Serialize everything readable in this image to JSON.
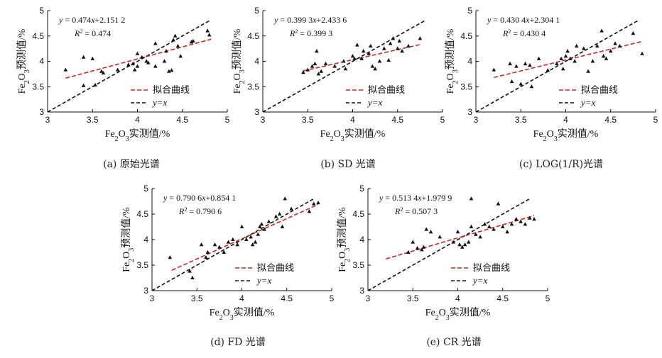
{
  "chart_data": [
    {
      "type": "scatter",
      "panel_label": "(a) 原始光谱",
      "xlabel": "Fe2O3实测值/%",
      "ylabel": "Fe2O3预测值/%",
      "xlim": [
        3,
        5
      ],
      "ylim": [
        3,
        5
      ],
      "xticks": [
        "3",
        "3.5",
        "4",
        "4.5",
        "5"
      ],
      "yticks": [
        "3",
        "3.5",
        "4",
        "4.5",
        "5"
      ],
      "equation": "y = 0.474x+2.151 2",
      "r2": "R² = 0.474",
      "fit": {
        "slope": 0.474,
        "intercept": 2.1512,
        "x_range": [
          3.2,
          4.82
        ]
      },
      "legend": {
        "fit_label": "拟合曲线",
        "identity_label": "y=x"
      },
      "points": [
        [
          3.2,
          3.83
        ],
        [
          3.4,
          3.52
        ],
        [
          3.4,
          4.08
        ],
        [
          3.5,
          4.05
        ],
        [
          3.53,
          3.53
        ],
        [
          3.6,
          3.8
        ],
        [
          3.62,
          3.77
        ],
        [
          3.78,
          3.83
        ],
        [
          3.9,
          3.93
        ],
        [
          3.95,
          3.95
        ],
        [
          3.97,
          3.83
        ],
        [
          4.0,
          3.9
        ],
        [
          4.0,
          4.15
        ],
        [
          4.05,
          4.08
        ],
        [
          4.1,
          4.0
        ],
        [
          4.12,
          3.97
        ],
        [
          4.2,
          3.9
        ],
        [
          4.2,
          4.35
        ],
        [
          4.3,
          4.0
        ],
        [
          4.32,
          4.2
        ],
        [
          4.35,
          3.8
        ],
        [
          4.38,
          3.82
        ],
        [
          4.4,
          4.42
        ],
        [
          4.42,
          4.5
        ],
        [
          4.45,
          4.3
        ],
        [
          4.48,
          4.1
        ],
        [
          4.6,
          4.38
        ],
        [
          4.62,
          4.4
        ],
        [
          4.78,
          4.6
        ],
        [
          4.8,
          4.52
        ]
      ]
    },
    {
      "type": "scatter",
      "panel_label": "(b) SD 光谱",
      "xlabel": "Fe2O3实测值/%",
      "ylabel": "Fe2O3预测值/%",
      "xlim": [
        3,
        5
      ],
      "ylim": [
        3,
        5
      ],
      "xticks": [
        "3",
        "3.5",
        "4",
        "4.5",
        "5"
      ],
      "yticks": [
        "3",
        "3.5",
        "4",
        "4.5",
        "5"
      ],
      "equation": "y = 0.399 3x+2.433 6",
      "r2": "R² = 0.399 3",
      "fit": {
        "slope": 0.3993,
        "intercept": 2.4336,
        "x_range": [
          3.45,
          4.75
        ]
      },
      "legend": {
        "fit_label": "拟合曲线",
        "identity_label": "y=x"
      },
      "points": [
        [
          3.45,
          3.78
        ],
        [
          3.5,
          3.83
        ],
        [
          3.55,
          3.9
        ],
        [
          3.58,
          3.95
        ],
        [
          3.6,
          4.2
        ],
        [
          3.62,
          3.75
        ],
        [
          3.65,
          3.8
        ],
        [
          3.7,
          3.95
        ],
        [
          3.8,
          3.9
        ],
        [
          3.9,
          4.0
        ],
        [
          3.92,
          3.85
        ],
        [
          4.0,
          4.1
        ],
        [
          4.02,
          4.05
        ],
        [
          4.05,
          4.32
        ],
        [
          4.1,
          4.05
        ],
        [
          4.12,
          4.2
        ],
        [
          4.18,
          4.15
        ],
        [
          4.2,
          4.3
        ],
        [
          4.22,
          3.9
        ],
        [
          4.25,
          3.85
        ],
        [
          4.3,
          4.0
        ],
        [
          4.35,
          4.25
        ],
        [
          4.4,
          4.02
        ],
        [
          4.42,
          4.35
        ],
        [
          4.45,
          4.45
        ],
        [
          4.5,
          4.25
        ],
        [
          4.52,
          4.4
        ],
        [
          4.55,
          4.2
        ],
        [
          4.62,
          4.3
        ],
        [
          4.75,
          4.45
        ]
      ]
    },
    {
      "type": "scatter",
      "panel_label": "(c) LOG(1/R)光谱",
      "xlabel": "Fe2O3实测值/%",
      "ylabel": "Fe2O3预测值/%",
      "xlim": [
        3,
        5
      ],
      "ylim": [
        3,
        5
      ],
      "xticks": [
        "3",
        "3.5",
        "4",
        "4.5",
        "5"
      ],
      "yticks": [
        "3",
        "3.5",
        "4",
        "4.5",
        "5"
      ],
      "equation": "y = 0.430 4x+2.304 1",
      "r2": "R² = 0.430 4",
      "fit": {
        "slope": 0.4304,
        "intercept": 2.3041,
        "x_range": [
          3.2,
          4.85
        ]
      },
      "legend": {
        "fit_label": "拟合曲线",
        "identity_label": "y=x"
      },
      "points": [
        [
          3.2,
          3.83
        ],
        [
          3.38,
          3.95
        ],
        [
          3.4,
          3.6
        ],
        [
          3.45,
          3.9
        ],
        [
          3.5,
          3.55
        ],
        [
          3.55,
          3.95
        ],
        [
          3.6,
          3.92
        ],
        [
          3.62,
          3.5
        ],
        [
          3.7,
          4.05
        ],
        [
          3.8,
          3.82
        ],
        [
          3.9,
          3.95
        ],
        [
          3.95,
          4.05
        ],
        [
          3.97,
          3.85
        ],
        [
          4.0,
          4.1
        ],
        [
          4.02,
          4.2
        ],
        [
          4.05,
          4.05
        ],
        [
          4.1,
          4.0
        ],
        [
          4.12,
          4.3
        ],
        [
          4.2,
          4.25
        ],
        [
          4.25,
          3.8
        ],
        [
          4.3,
          4.0
        ],
        [
          4.35,
          4.3
        ],
        [
          4.4,
          4.6
        ],
        [
          4.42,
          4.1
        ],
        [
          4.45,
          4.05
        ],
        [
          4.5,
          4.2
        ],
        [
          4.55,
          4.35
        ],
        [
          4.6,
          4.3
        ],
        [
          4.75,
          4.55
        ],
        [
          4.85,
          4.15
        ]
      ]
    },
    {
      "type": "scatter",
      "panel_label": "(d) FD 光谱",
      "xlabel": "Fe2O3实测值/%",
      "ylabel": "Fe2O3预测值/%",
      "xlim": [
        3,
        5
      ],
      "ylim": [
        3,
        5
      ],
      "xticks": [
        "3",
        "3.5",
        "4",
        "4.5",
        "5"
      ],
      "yticks": [
        "3",
        "3.5",
        "4",
        "4.5",
        "5"
      ],
      "equation": "y = 0.790 6x+0.854 1",
      "r2": "R² = 0.790 6",
      "fit": {
        "slope": 0.7906,
        "intercept": 0.8541,
        "x_range": [
          3.22,
          4.85
        ]
      },
      "legend": {
        "fit_label": "拟合曲线",
        "identity_label": "y=x"
      },
      "points": [
        [
          3.2,
          3.65
        ],
        [
          3.42,
          3.38
        ],
        [
          3.45,
          3.25
        ],
        [
          3.55,
          3.9
        ],
        [
          3.6,
          3.65
        ],
        [
          3.62,
          3.75
        ],
        [
          3.7,
          3.9
        ],
        [
          3.75,
          3.85
        ],
        [
          3.8,
          3.75
        ],
        [
          3.85,
          3.95
        ],
        [
          3.9,
          4.0
        ],
        [
          3.95,
          3.9
        ],
        [
          4.0,
          4.25
        ],
        [
          4.05,
          4.0
        ],
        [
          4.1,
          4.05
        ],
        [
          4.12,
          3.9
        ],
        [
          4.15,
          3.95
        ],
        [
          4.18,
          4.1
        ],
        [
          4.2,
          4.25
        ],
        [
          4.22,
          4.3
        ],
        [
          4.25,
          4.2
        ],
        [
          4.3,
          4.35
        ],
        [
          4.38,
          4.45
        ],
        [
          4.42,
          4.5
        ],
        [
          4.45,
          4.25
        ],
        [
          4.48,
          4.8
        ],
        [
          4.55,
          4.6
        ],
        [
          4.75,
          4.55
        ],
        [
          4.8,
          4.7
        ],
        [
          4.85,
          4.72
        ]
      ]
    },
    {
      "type": "scatter",
      "panel_label": "(e) CR 光谱",
      "xlabel": "Fe2O3实测值/%",
      "ylabel": "Fe2O3预测值/%",
      "xlim": [
        3,
        5
      ],
      "ylim": [
        3,
        5
      ],
      "xticks": [
        "3",
        "3.5",
        "4",
        "4.5",
        "5"
      ],
      "yticks": [
        "3",
        "3.5",
        "4",
        "4.5",
        "5"
      ],
      "equation": "y = 0.513 4x+1.979 9",
      "r2": "R² = 0.507 3",
      "fit": {
        "slope": 0.5134,
        "intercept": 1.9799,
        "x_range": [
          3.2,
          4.85
        ]
      },
      "legend": {
        "fit_label": "拟合曲线",
        "identity_label": "y=x"
      },
      "points": [
        [
          3.45,
          3.75
        ],
        [
          3.5,
          3.95
        ],
        [
          3.55,
          3.83
        ],
        [
          3.6,
          3.8
        ],
        [
          3.62,
          3.85
        ],
        [
          3.65,
          4.2
        ],
        [
          3.7,
          4.15
        ],
        [
          3.8,
          4.05
        ],
        [
          3.95,
          3.95
        ],
        [
          4.0,
          4.15
        ],
        [
          4.02,
          3.9
        ],
        [
          4.05,
          3.85
        ],
        [
          4.08,
          3.9
        ],
        [
          4.12,
          3.95
        ],
        [
          4.15,
          4.25
        ],
        [
          4.15,
          4.8
        ],
        [
          4.2,
          4.1
        ],
        [
          4.25,
          4.05
        ],
        [
          4.3,
          4.3
        ],
        [
          4.35,
          4.25
        ],
        [
          4.4,
          4.2
        ],
        [
          4.45,
          4.7
        ],
        [
          4.5,
          4.25
        ],
        [
          4.55,
          4.15
        ],
        [
          4.6,
          4.3
        ],
        [
          4.65,
          4.4
        ],
        [
          4.7,
          4.35
        ],
        [
          4.75,
          4.3
        ],
        [
          4.8,
          4.42
        ],
        [
          4.85,
          4.4
        ]
      ]
    }
  ]
}
